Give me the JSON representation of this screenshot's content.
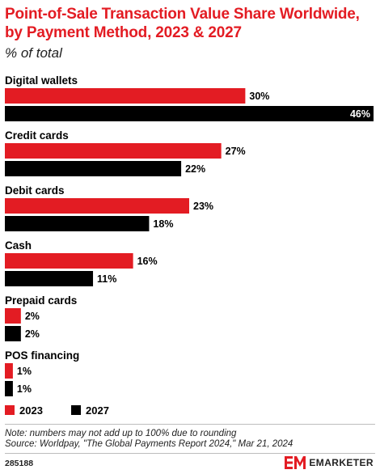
{
  "title": "Point-of-Sale Transaction Value Share Worldwide, by Payment Method, 2023 & 2027",
  "subtitle": "% of total",
  "colors": {
    "2023": "#e31c23",
    "2027": "#000000"
  },
  "legend": {
    "items": [
      "2023",
      "2027"
    ]
  },
  "footer": {
    "note": "Note: numbers may not add up to 100% due to rounding",
    "source": "Source: Worldpay, \"The Global Payments Report 2024,\" Mar 21, 2024",
    "chart_id": "285188",
    "brand": "EMARKETER"
  },
  "chart_data": {
    "type": "bar",
    "orientation": "horizontal",
    "categories": [
      "Digital wallets",
      "Credit cards",
      "Debit cards",
      "Cash",
      "Prepaid cards",
      "POS financing"
    ],
    "series": [
      {
        "name": "2023",
        "values": [
          30,
          27,
          23,
          16,
          2,
          1
        ]
      },
      {
        "name": "2027",
        "values": [
          46,
          22,
          18,
          11,
          2,
          1
        ]
      }
    ],
    "value_labels": {
      "2023": [
        "30%",
        "27%",
        "23%",
        "16%",
        "2%",
        "1%"
      ],
      "2027": [
        "46%",
        "22%",
        "18%",
        "11%",
        "2%",
        "1%"
      ]
    },
    "xlim": [
      0,
      46
    ],
    "grid": false,
    "legend_position": "bottom-left"
  }
}
